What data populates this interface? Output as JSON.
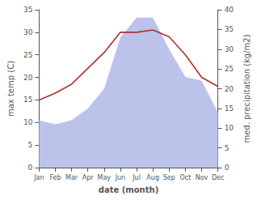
{
  "chart_data": {
    "type": "line",
    "xlabel": "date (month)",
    "ylabel": "max temp (C)",
    "y2label": "med. precipitation (kg/m2)",
    "categories": [
      "Jan",
      "Feb",
      "Mar",
      "Apr",
      "May",
      "Jun",
      "Jul",
      "Aug",
      "Sep",
      "Oct",
      "Nov",
      "Dec"
    ],
    "series": [
      {
        "type": "area",
        "axis": "y2",
        "color": "#b0b8e8",
        "values": [
          12,
          11,
          12,
          15,
          20,
          33,
          38,
          38,
          30,
          23,
          22,
          14
        ]
      },
      {
        "type": "line",
        "axis": "y",
        "color": "#b03030",
        "values": [
          15,
          16.5,
          18.5,
          22,
          25.5,
          30,
          30,
          30.5,
          29,
          25,
          20,
          18
        ]
      }
    ],
    "ylim": [
      0,
      35
    ],
    "yticks": [
      0,
      5,
      10,
      15,
      20,
      25,
      30,
      35
    ],
    "y2lim": [
      0,
      40
    ],
    "y2ticks": [
      0,
      5,
      10,
      15,
      20,
      25,
      30,
      35,
      40
    ],
    "grid": false
  }
}
